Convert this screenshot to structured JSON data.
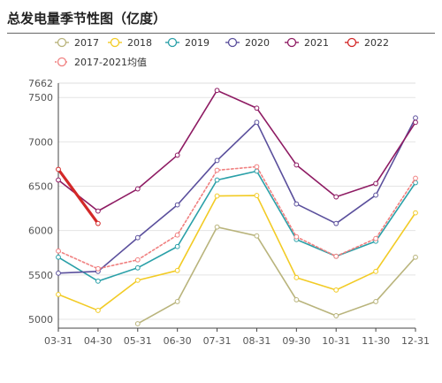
{
  "chart_data": {
    "type": "line",
    "title": "总发电量季节性图（亿度）",
    "xlabel": "",
    "ylabel": "",
    "categories": [
      "03-31",
      "04-30",
      "05-31",
      "06-30",
      "07-31",
      "08-31",
      "09-30",
      "10-31",
      "11-30",
      "12-31"
    ],
    "ylim": [
      4900,
      7662
    ],
    "yticks": [
      5000,
      5500,
      6000,
      6500,
      7000,
      7500,
      7662
    ],
    "grid": "horizontal",
    "legend_position": "top",
    "series": [
      {
        "name": "2017",
        "color": "#b9b47c",
        "dash": false,
        "values": [
          null,
          null,
          4950,
          5200,
          6040,
          5940,
          5220,
          5040,
          5200,
          5700
        ]
      },
      {
        "name": "2018",
        "color": "#f2cb25",
        "dash": false,
        "values": [
          5280,
          5100,
          5440,
          5550,
          6390,
          6395,
          5470,
          5330,
          5540,
          6200
        ]
      },
      {
        "name": "2019",
        "color": "#2aa0a8",
        "dash": false,
        "values": [
          5700,
          5430,
          5580,
          5820,
          6570,
          6670,
          5900,
          5710,
          5880,
          6540
        ]
      },
      {
        "name": "2020",
        "color": "#5a4f9c",
        "dash": false,
        "values": [
          5520,
          5540,
          5920,
          6290,
          6790,
          7220,
          6300,
          6080,
          6400,
          7270
        ]
      },
      {
        "name": "2021",
        "color": "#8e1b63",
        "dash": false,
        "values": [
          6570,
          6220,
          6470,
          6850,
          7580,
          7380,
          6740,
          6380,
          6530,
          7220
        ]
      },
      {
        "name": "2022",
        "color": "#d32828",
        "dash": false,
        "width": 3.2,
        "values": [
          6690,
          6080,
          null,
          null,
          null,
          null,
          null,
          null,
          null,
          null
        ]
      },
      {
        "name": "2017-2021均值",
        "color": "#f08080",
        "dash": true,
        "values": [
          5770,
          5570,
          5670,
          5950,
          6680,
          6720,
          5930,
          5710,
          5910,
          6590
        ]
      }
    ]
  }
}
